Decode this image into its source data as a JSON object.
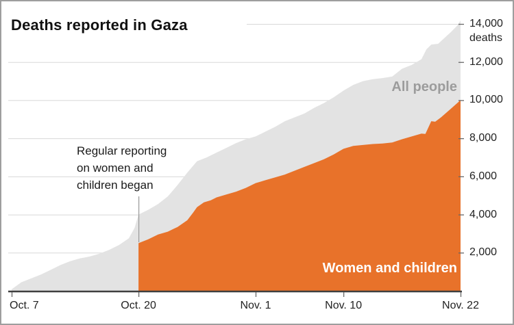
{
  "header": {
    "title": "Deaths reported in Gaza"
  },
  "annotation": {
    "text": "Regular reporting\non women and\nchildren began"
  },
  "series_labels": {
    "all_people": "All people",
    "women_children": "Women and children"
  },
  "y_axis": {
    "unit": "deaths"
  },
  "colors": {
    "all_people_area": "#e3e3e3",
    "women_children_area": "#e8722a",
    "grid": "#d8d8d8",
    "axis": "#3f3f3f",
    "tick": "#666666",
    "annotation_line": "#999999",
    "all_people_label": "#9c9c9c",
    "women_children_label": "#ffffff",
    "frame_border": "#9e9e9e"
  },
  "chart_data": {
    "type": "area",
    "title": "Deaths reported in Gaza",
    "x_unit": "days since Oct. 7",
    "ylim": [
      0,
      14000
    ],
    "grid": true,
    "legend_position": "inline-labels",
    "y_ticks": [
      {
        "value": 2000,
        "label": "2,000"
      },
      {
        "value": 4000,
        "label": "4,000"
      },
      {
        "value": 6000,
        "label": "6,000"
      },
      {
        "value": 8000,
        "label": "8,000"
      },
      {
        "value": 10000,
        "label": "10,000"
      },
      {
        "value": 12000,
        "label": "12,000"
      },
      {
        "value": 14000,
        "label": "14,000"
      }
    ],
    "x_ticks": [
      {
        "label": "Oct. 7",
        "day": 0,
        "align": "left"
      },
      {
        "label": "Oct. 20",
        "day": 13,
        "align": "center"
      },
      {
        "label": "Nov. 1",
        "day": 25,
        "align": "center"
      },
      {
        "label": "Nov. 10",
        "day": 34,
        "align": "center"
      },
      {
        "label": "Nov. 22",
        "day": 46,
        "align": "center"
      }
    ],
    "annotation": {
      "text": "Regular reporting on women and children began",
      "at_day": 13
    },
    "series": [
      {
        "name": "All people",
        "color": "#e3e3e3",
        "points": [
          [
            0,
            80
          ],
          [
            1,
            450
          ],
          [
            2,
            650
          ],
          [
            3,
            850
          ],
          [
            4,
            1100
          ],
          [
            5,
            1350
          ],
          [
            6,
            1550
          ],
          [
            7,
            1700
          ],
          [
            8,
            1800
          ],
          [
            9,
            1950
          ],
          [
            10,
            2150
          ],
          [
            11,
            2400
          ],
          [
            12,
            2750
          ],
          [
            12.6,
            3300
          ],
          [
            13,
            4000
          ],
          [
            14,
            4250
          ],
          [
            15,
            4550
          ],
          [
            16,
            4950
          ],
          [
            17,
            5550
          ],
          [
            18,
            6200
          ],
          [
            19,
            6800
          ],
          [
            20,
            7000
          ],
          [
            21,
            7250
          ],
          [
            22,
            7500
          ],
          [
            23,
            7750
          ],
          [
            24,
            7950
          ],
          [
            25,
            8100
          ],
          [
            26,
            8350
          ],
          [
            27,
            8600
          ],
          [
            28,
            8900
          ],
          [
            29,
            9100
          ],
          [
            30,
            9300
          ],
          [
            31,
            9600
          ],
          [
            32,
            9850
          ],
          [
            33,
            10150
          ],
          [
            34,
            10500
          ],
          [
            35,
            10800
          ],
          [
            36,
            11000
          ],
          [
            37,
            11100
          ],
          [
            38,
            11160
          ],
          [
            39,
            11240
          ],
          [
            40,
            11650
          ],
          [
            41,
            11850
          ],
          [
            42,
            12150
          ],
          [
            42.5,
            12670
          ],
          [
            43,
            12920
          ],
          [
            43.7,
            12960
          ],
          [
            44,
            13100
          ],
          [
            44.7,
            13430
          ],
          [
            45,
            13570
          ],
          [
            45.7,
            13930
          ],
          [
            46,
            14180
          ]
        ]
      },
      {
        "name": "Women and children",
        "color": "#e8722a",
        "points": [
          [
            13,
            2500
          ],
          [
            14,
            2700
          ],
          [
            15,
            2950
          ],
          [
            16,
            3100
          ],
          [
            17,
            3350
          ],
          [
            18,
            3700
          ],
          [
            18.6,
            4100
          ],
          [
            19,
            4390
          ],
          [
            19.7,
            4640
          ],
          [
            20.4,
            4750
          ],
          [
            21,
            4900
          ],
          [
            22,
            5050
          ],
          [
            23,
            5200
          ],
          [
            24,
            5400
          ],
          [
            25,
            5650
          ],
          [
            26,
            5800
          ],
          [
            27,
            5950
          ],
          [
            28,
            6100
          ],
          [
            29,
            6300
          ],
          [
            30,
            6500
          ],
          [
            31,
            6700
          ],
          [
            32,
            6900
          ],
          [
            33,
            7150
          ],
          [
            34,
            7450
          ],
          [
            35,
            7600
          ],
          [
            36,
            7650
          ],
          [
            37,
            7700
          ],
          [
            38,
            7730
          ],
          [
            39,
            7780
          ],
          [
            40,
            7950
          ],
          [
            41,
            8100
          ],
          [
            42,
            8250
          ],
          [
            42.4,
            8230
          ],
          [
            43,
            8900
          ],
          [
            43.4,
            8870
          ],
          [
            44,
            9100
          ],
          [
            45,
            9550
          ],
          [
            46,
            10000
          ]
        ]
      }
    ]
  }
}
